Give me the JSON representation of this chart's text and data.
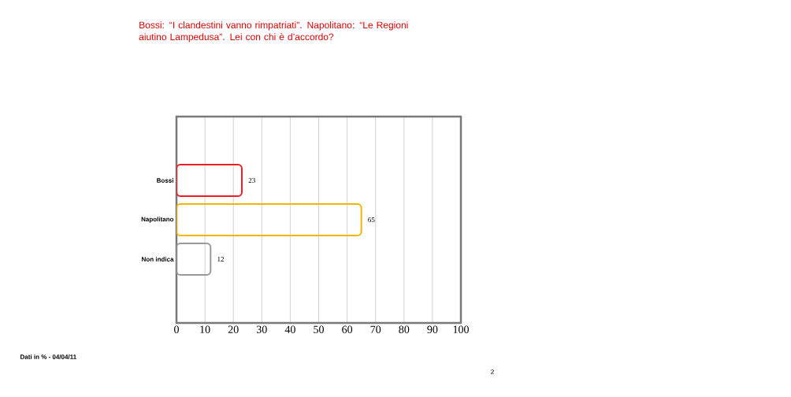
{
  "chart_data": {
    "type": "bar",
    "orientation": "horizontal",
    "title": "Bossi: “I clandestini vanno rimpatriati”. Napolitano: “Le Regioni aiutino Lampedusa”. Lei con chi è d’accordo?",
    "categories": [
      "Bossi",
      "Napolitano",
      "Non indica"
    ],
    "values": [
      23,
      65,
      12
    ],
    "colors": [
      "#ee1c24",
      "#f2b600",
      "#999999"
    ],
    "xlim": [
      0,
      100
    ],
    "xticks": [
      0,
      10,
      20,
      30,
      40,
      50,
      60,
      70,
      80,
      90,
      100
    ],
    "grid": "x",
    "data_labels": true,
    "annotations": [
      "Dati in % - 04/04/11",
      "2"
    ]
  }
}
